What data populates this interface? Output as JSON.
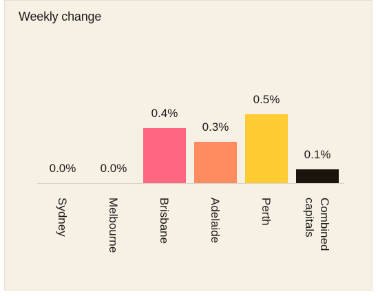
{
  "title": "Weekly change",
  "colors": {
    "background": "#f7f0e5",
    "border": "#e4dbcd",
    "baseline": "#d9d2c7",
    "text": "#1c1a17"
  },
  "chart_data": {
    "type": "bar",
    "title": "Weekly change",
    "xlabel": "",
    "ylabel": "",
    "unit": "%",
    "categories": [
      "Sydney",
      "Melbourne",
      "Brisbane",
      "Adelaide",
      "Perth",
      "Combined capitals"
    ],
    "category_lines": [
      [
        "Sydney"
      ],
      [
        "Melbourne"
      ],
      [
        "Brisbane"
      ],
      [
        "Adelaide"
      ],
      [
        "Perth"
      ],
      [
        "Combined",
        "capitals"
      ]
    ],
    "values": [
      0.0,
      0.0,
      0.4,
      0.3,
      0.5,
      0.1
    ],
    "value_labels": [
      "0.0%",
      "0.0%",
      "0.4%",
      "0.3%",
      "0.5%",
      "0.1%"
    ],
    "bar_colors": [
      "#ff6680",
      "#ff6680",
      "#ff6680",
      "#ff8c60",
      "#ffcc33",
      "#1a140c"
    ],
    "ylim": [
      0,
      0.6
    ],
    "grid": false,
    "legend": "none"
  }
}
